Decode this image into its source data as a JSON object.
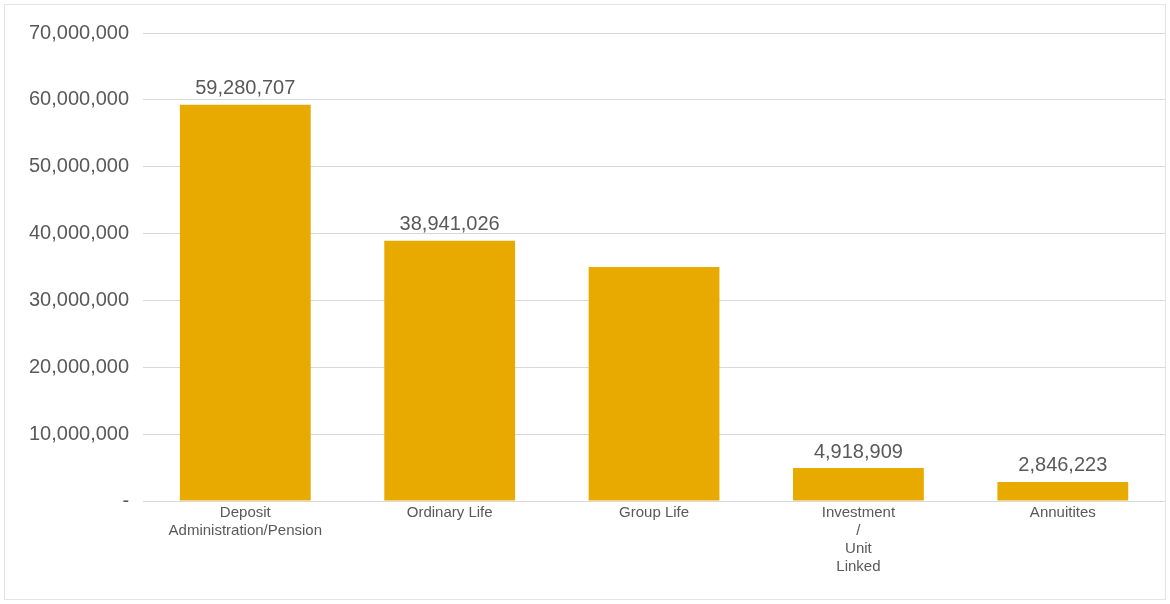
{
  "chart_data": {
    "type": "bar",
    "categories": [
      "Deposit Administration/Pension",
      "Ordinary Life",
      "Group Life",
      "Investment / Unit Linked",
      "Annuitites"
    ],
    "values": [
      59280707,
      38941026,
      35000000,
      4918909,
      2846223
    ],
    "value_labels": [
      "59,280,707",
      "38,941,026",
      null,
      "4,918,909",
      "2,846,223"
    ],
    "color": "#e9aa00",
    "ylim": [
      0,
      70000000
    ],
    "yticks": [
      {
        "value": 0,
        "label": "-"
      },
      {
        "value": 10000000,
        "label": "10,000,000"
      },
      {
        "value": 20000000,
        "label": "20,000,000"
      },
      {
        "value": 30000000,
        "label": "30,000,000"
      },
      {
        "value": 40000000,
        "label": "40,000,000"
      },
      {
        "value": 50000000,
        "label": "50,000,000"
      },
      {
        "value": 60000000,
        "label": "60,000,000"
      },
      {
        "value": 70000000,
        "label": "70,000,000"
      }
    ],
    "grid": "y",
    "legend": false
  }
}
